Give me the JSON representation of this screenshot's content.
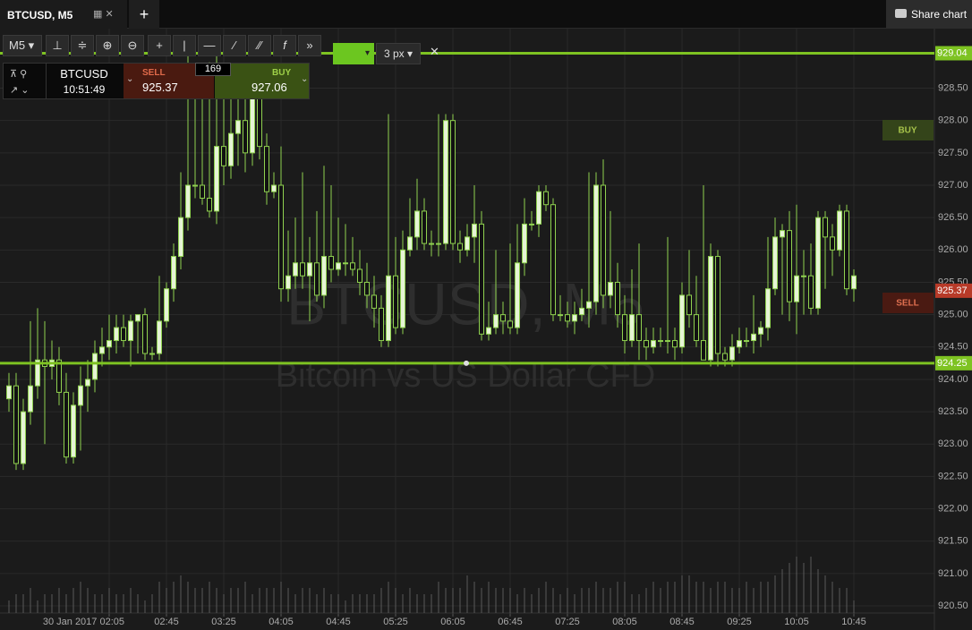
{
  "tab": {
    "title": "BTCUSD, M5"
  },
  "share": "Share chart",
  "toolbar": {
    "timeframe": "M5",
    "line_width": "3 px"
  },
  "ticket": {
    "symbol": "BTCUSD",
    "time": "10:51:49",
    "sell_label": "SELL",
    "sell_price": "925.37",
    "spread": "169",
    "buy_label": "BUY",
    "buy_price": "927.06"
  },
  "chart_data": {
    "type": "candlestick",
    "title": "BTCUSD, M5",
    "subtitle": "Bitcoin vs US Dollar CFD",
    "colors": {
      "line": "#7ec322",
      "candle": "#8fd14f",
      "up_fill": "#e6f4d6",
      "down_fill": "#111111",
      "volume": "#5a5a5a"
    },
    "ohlc": [
      [
        923.7,
        924.1,
        923.5,
        923.9
      ],
      [
        923.9,
        924.1,
        922.6,
        922.7
      ],
      [
        922.7,
        923.7,
        922.6,
        923.5
      ],
      [
        923.5,
        924.9,
        923.3,
        923.9
      ],
      [
        923.9,
        925.1,
        923.7,
        924.3
      ],
      [
        924.3,
        924.9,
        923.0,
        924.2
      ],
      [
        924.2,
        924.6,
        924.0,
        924.3
      ],
      [
        924.3,
        924.5,
        923.6,
        923.8
      ],
      [
        923.8,
        924.1,
        922.7,
        922.8
      ],
      [
        922.8,
        923.8,
        922.7,
        923.6
      ],
      [
        923.6,
        924.2,
        922.9,
        923.9
      ],
      [
        923.9,
        924.3,
        923.5,
        924.0
      ],
      [
        924.0,
        924.6,
        923.8,
        924.4
      ],
      [
        924.4,
        924.8,
        924.2,
        924.5
      ],
      [
        924.5,
        925.0,
        924.3,
        924.6
      ],
      [
        924.6,
        925.0,
        924.4,
        924.8
      ],
      [
        924.8,
        925.0,
        924.5,
        924.6
      ],
      [
        924.6,
        925.0,
        924.2,
        924.9
      ],
      [
        924.9,
        925.0,
        924.4,
        925.0
      ],
      [
        925.0,
        925.1,
        924.3,
        924.4
      ],
      [
        924.4,
        924.5,
        924.3,
        924.4
      ],
      [
        924.4,
        925.6,
        924.3,
        924.9
      ],
      [
        924.9,
        925.5,
        924.8,
        925.4
      ],
      [
        925.4,
        926.1,
        925.2,
        925.9
      ],
      [
        925.9,
        927.2,
        925.7,
        926.5
      ],
      [
        926.5,
        929.0,
        926.3,
        927.0
      ],
      [
        927.0,
        928.8,
        926.8,
        927.0
      ],
      [
        927.0,
        928.5,
        926.7,
        926.8
      ],
      [
        926.8,
        928.9,
        926.5,
        926.6
      ],
      [
        926.6,
        929.0,
        926.4,
        927.6
      ],
      [
        927.6,
        928.6,
        927.0,
        927.3
      ],
      [
        927.3,
        928.4,
        927.1,
        927.8
      ],
      [
        927.8,
        928.7,
        927.3,
        928.0
      ],
      [
        928.0,
        928.5,
        927.2,
        927.5
      ],
      [
        927.5,
        928.8,
        927.3,
        928.4
      ],
      [
        928.4,
        928.6,
        927.4,
        927.6
      ],
      [
        927.6,
        927.8,
        926.7,
        926.9
      ],
      [
        926.9,
        927.2,
        926.8,
        927.0
      ],
      [
        927.0,
        927.6,
        925.2,
        925.4
      ],
      [
        925.4,
        926.3,
        925.2,
        925.6
      ],
      [
        925.6,
        926.5,
        925.4,
        925.8
      ],
      [
        925.8,
        927.2,
        925.4,
        925.6
      ],
      [
        925.6,
        926.2,
        924.9,
        925.8
      ],
      [
        925.8,
        926.6,
        925.2,
        925.3
      ],
      [
        925.3,
        927.3,
        925.1,
        925.9
      ],
      [
        925.9,
        927.0,
        925.5,
        925.7
      ],
      [
        925.7,
        926.5,
        925.6,
        925.8
      ],
      [
        925.8,
        926.4,
        925.6,
        925.8
      ],
      [
        925.8,
        926.2,
        925.6,
        925.7
      ],
      [
        925.7,
        926.0,
        925.3,
        925.5
      ],
      [
        925.5,
        925.8,
        925.1,
        925.3
      ],
      [
        925.3,
        925.6,
        924.8,
        925.1
      ],
      [
        925.1,
        925.3,
        924.5,
        924.6
      ],
      [
        924.6,
        928.1,
        924.5,
        925.6
      ],
      [
        925.6,
        926.2,
        924.7,
        924.8
      ],
      [
        924.8,
        926.3,
        924.7,
        926.0
      ],
      [
        926.0,
        926.8,
        925.9,
        926.2
      ],
      [
        926.2,
        927.1,
        926.0,
        926.6
      ],
      [
        926.6,
        926.8,
        926.0,
        926.1
      ],
      [
        926.1,
        926.3,
        925.9,
        926.1
      ],
      [
        926.1,
        928.1,
        925.9,
        926.1
      ],
      [
        926.1,
        928.1,
        926.0,
        928.0
      ],
      [
        928.0,
        928.1,
        926.0,
        926.1
      ],
      [
        926.1,
        926.3,
        925.8,
        926.0
      ],
      [
        926.0,
        926.4,
        925.9,
        926.2
      ],
      [
        926.2,
        927.0,
        925.8,
        926.4
      ],
      [
        926.4,
        926.6,
        924.6,
        924.7
      ],
      [
        924.7,
        925.2,
        924.6,
        924.8
      ],
      [
        924.8,
        926.0,
        924.7,
        925.0
      ],
      [
        925.0,
        925.2,
        924.7,
        924.9
      ],
      [
        924.9,
        926.1,
        924.7,
        924.8
      ],
      [
        924.8,
        926.4,
        924.7,
        925.8
      ],
      [
        925.8,
        926.8,
        925.6,
        926.4
      ],
      [
        926.4,
        926.6,
        926.3,
        926.4
      ],
      [
        926.4,
        927.0,
        926.2,
        926.9
      ],
      [
        926.9,
        927.0,
        926.6,
        926.7
      ],
      [
        926.7,
        926.8,
        924.9,
        925.0
      ],
      [
        925.0,
        925.3,
        924.9,
        925.0
      ],
      [
        925.0,
        925.2,
        924.8,
        924.9
      ],
      [
        924.9,
        925.2,
        924.7,
        925.0
      ],
      [
        925.0,
        925.4,
        924.9,
        925.1
      ],
      [
        925.1,
        927.2,
        924.8,
        925.2
      ],
      [
        925.2,
        927.2,
        925.0,
        927.0
      ],
      [
        927.0,
        927.4,
        925.1,
        925.3
      ],
      [
        925.3,
        926.6,
        925.1,
        925.5
      ],
      [
        925.5,
        925.8,
        924.8,
        925.0
      ],
      [
        925.0,
        925.3,
        924.4,
        924.6
      ],
      [
        924.6,
        925.7,
        924.5,
        925.0
      ],
      [
        925.0,
        926.1,
        924.3,
        924.6
      ],
      [
        924.6,
        924.8,
        924.3,
        924.5
      ],
      [
        924.5,
        924.8,
        924.4,
        924.6
      ],
      [
        924.6,
        924.8,
        924.5,
        924.6
      ],
      [
        924.6,
        926.2,
        924.4,
        924.6
      ],
      [
        924.6,
        924.8,
        924.3,
        924.5
      ],
      [
        924.5,
        925.5,
        924.4,
        925.3
      ],
      [
        925.3,
        926.0,
        924.8,
        925.0
      ],
      [
        925.0,
        925.6,
        924.5,
        924.6
      ],
      [
        924.6,
        927.0,
        924.3,
        924.3
      ],
      [
        924.3,
        926.1,
        924.2,
        925.9
      ],
      [
        925.9,
        926.0,
        924.2,
        924.4
      ],
      [
        924.4,
        924.5,
        924.2,
        924.3
      ],
      [
        924.3,
        924.7,
        924.2,
        924.5
      ],
      [
        924.5,
        924.8,
        924.4,
        924.6
      ],
      [
        924.6,
        924.8,
        924.5,
        924.6
      ],
      [
        924.6,
        925.3,
        924.4,
        924.7
      ],
      [
        924.7,
        924.9,
        924.5,
        924.8
      ],
      [
        924.8,
        926.2,
        924.6,
        925.4
      ],
      [
        925.4,
        926.5,
        925.3,
        926.2
      ],
      [
        926.2,
        926.4,
        925.0,
        926.3
      ],
      [
        926.3,
        926.6,
        924.9,
        925.2
      ],
      [
        925.2,
        926.7,
        924.7,
        925.6
      ],
      [
        925.6,
        926.0,
        925.0,
        925.6
      ],
      [
        925.6,
        926.1,
        925.0,
        925.1
      ],
      [
        925.1,
        926.6,
        925.0,
        926.5
      ],
      [
        926.5,
        926.6,
        925.4,
        926.2
      ],
      [
        926.2,
        926.4,
        925.6,
        926.0
      ],
      [
        926.0,
        926.7,
        925.9,
        926.6
      ],
      [
        926.6,
        926.7,
        925.3,
        925.4
      ],
      [
        925.4,
        925.7,
        925.2,
        925.6
      ]
    ],
    "volume": [
      2,
      3,
      3,
      4,
      2,
      3,
      3,
      4,
      3,
      4,
      5,
      4,
      3,
      3,
      4,
      3,
      3,
      4,
      3,
      2,
      3,
      5,
      4,
      5,
      6,
      5,
      4,
      4,
      5,
      4,
      3,
      4,
      4,
      5,
      3,
      4,
      4,
      4,
      5,
      4,
      3,
      4,
      4,
      3,
      4,
      3,
      3,
      2,
      3,
      3,
      3,
      3,
      4,
      5,
      4,
      3,
      4,
      3,
      3,
      3,
      5,
      4,
      4,
      4,
      6,
      5,
      4,
      5,
      4,
      4,
      4,
      3,
      4,
      3,
      4,
      5,
      4,
      3,
      4,
      3,
      4,
      4,
      5,
      4,
      4,
      5,
      5,
      3,
      3,
      4,
      5,
      4,
      5,
      5,
      6,
      6,
      5,
      5,
      4,
      5,
      5,
      4,
      4,
      5,
      4,
      5,
      5,
      6,
      7,
      8,
      9,
      8,
      9,
      7,
      6,
      5,
      4,
      4,
      2
    ],
    "xlim": [
      -1.25,
      129.25
    ],
    "ylim": [
      920.39,
      929.42
    ],
    "yticks": [
      {
        "value": 920.5,
        "label": "920.50"
      },
      {
        "value": 921,
        "label": "921.00"
      },
      {
        "value": 921.5,
        "label": "921.50"
      },
      {
        "value": 922,
        "label": "922.00"
      },
      {
        "value": 922.5,
        "label": "922.50"
      },
      {
        "value": 923,
        "label": "923.00"
      },
      {
        "value": 923.5,
        "label": "923.50"
      },
      {
        "value": 924,
        "label": "924.00"
      },
      {
        "value": 924.5,
        "label": "924.50"
      },
      {
        "value": 925,
        "label": "925.00"
      },
      {
        "value": 925.5,
        "label": "925.50"
      },
      {
        "value": 926,
        "label": "926.00"
      },
      {
        "value": 926.5,
        "label": "926.50"
      },
      {
        "value": 927,
        "label": "927.00"
      },
      {
        "value": 927.5,
        "label": "927.50"
      },
      {
        "value": 928,
        "label": "928.00"
      },
      {
        "value": 928.5,
        "label": "928.50"
      }
    ],
    "xticks": [
      {
        "value": 14,
        "label": "30 Jan 2017 02:05"
      },
      {
        "value": 22,
        "label": "02:45"
      },
      {
        "value": 30,
        "label": "03:25"
      },
      {
        "value": 38,
        "label": "04:05"
      },
      {
        "value": 46,
        "label": "04:45"
      },
      {
        "value": 54,
        "label": "05:25"
      },
      {
        "value": 62,
        "label": "06:05"
      },
      {
        "value": 70,
        "label": "06:45"
      },
      {
        "value": 78,
        "label": "07:25"
      },
      {
        "value": 86,
        "label": "08:05"
      },
      {
        "value": 94,
        "label": "08:45"
      },
      {
        "value": 102,
        "label": "09:25"
      },
      {
        "value": 110,
        "label": "10:05"
      },
      {
        "value": 118,
        "label": "10:45"
      }
    ],
    "grid": true,
    "hlines": [
      {
        "value": 929.04,
        "label": "929.04"
      },
      {
        "value": 924.25,
        "label": "924.25"
      }
    ],
    "last_price": {
      "value": 925.37,
      "label": "925.37"
    },
    "side_labels": {
      "buy": "BUY",
      "sell": "SELL"
    }
  }
}
